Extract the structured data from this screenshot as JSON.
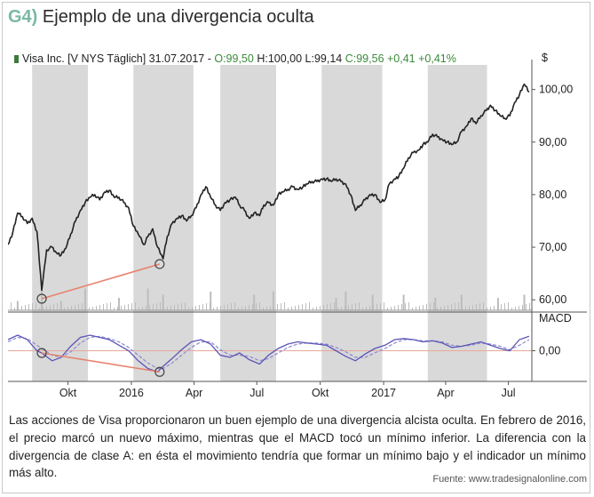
{
  "figure": {
    "tag": "G4)",
    "title": "Ejemplo de una divergencia oculta",
    "caption": "Las acciones de Visa proporcionaron un buen ejemplo de una divergencia alcista oculta. En febrero de 2016, el precio marcó un nuevo máximo, mientras que el MACD tocó un mínimo inferior. La diferencia con la divergencia de clase A: en ésta el movimiento tendría que formar un mínimo bajo y el indicador un mínimo más alto.",
    "source": "Fuente: www.tradesignalonline.com"
  },
  "colors": {
    "price_line": "#222222",
    "macd_line": "#5a55b8",
    "signal_line": "#8d8ad0",
    "divergence_line": "#e8826e",
    "shade": "#d9d9d9",
    "volume": "#bdbdbd",
    "tag": "#7bb8a4"
  },
  "chart_data": [
    {
      "type": "line",
      "panel": "price",
      "legend": {
        "symbol": "Visa Inc. [V NYS  Täglich] 31.07.2017 -",
        "open": "O:99,50",
        "high": "H:100,00",
        "low": "L:99,14",
        "close_change": "C:99,56 +0,41 +0,41%"
      },
      "currency": "$",
      "ylim": [
        58,
        104
      ],
      "y_ticks": [
        "100,00",
        "90,00",
        "80,00",
        "70,00",
        "60,00"
      ],
      "y_tick_values": [
        100,
        90,
        80,
        70,
        60
      ],
      "x_tick_labels": [
        "Okt",
        "2016",
        "Apr",
        "Jul",
        "Okt",
        "2017",
        "Apr",
        "Jul"
      ],
      "x_tick_dates": [
        "2015-10-01",
        "2016-01-01",
        "2016-04-01",
        "2016-07-01",
        "2016-10-01",
        "2017-01-01",
        "2017-04-01",
        "2017-07-01"
      ],
      "x_range": [
        "2015-07-06",
        "2017-08-04"
      ],
      "shaded_periods": [
        [
          "2015-08-10",
          "2015-10-30"
        ],
        [
          "2016-01-04",
          "2016-03-31"
        ],
        [
          "2016-05-09",
          "2016-07-29"
        ],
        [
          "2016-10-03",
          "2016-12-30"
        ],
        [
          "2017-03-06",
          "2017-05-31"
        ]
      ],
      "series": [
        {
          "x": [
            "2015-07-06",
            "2015-07-13",
            "2015-07-20",
            "2015-07-27",
            "2015-08-03",
            "2015-08-10",
            "2015-08-17",
            "2015-08-24",
            "2015-08-31",
            "2015-09-08",
            "2015-09-14",
            "2015-09-21",
            "2015-09-28",
            "2015-10-05",
            "2015-10-12",
            "2015-10-19",
            "2015-10-26",
            "2015-11-02",
            "2015-11-09",
            "2015-11-16",
            "2015-11-23",
            "2015-11-30",
            "2015-12-07",
            "2015-12-14",
            "2015-12-21",
            "2015-12-28",
            "2016-01-04",
            "2016-01-11",
            "2016-01-19",
            "2016-01-25",
            "2016-02-01",
            "2016-02-08",
            "2016-02-16",
            "2016-02-22",
            "2016-02-29",
            "2016-03-07",
            "2016-03-14",
            "2016-03-21",
            "2016-03-28",
            "2016-04-04",
            "2016-04-11",
            "2016-04-18",
            "2016-04-25",
            "2016-05-02",
            "2016-05-09",
            "2016-05-16",
            "2016-05-23",
            "2016-05-31",
            "2016-06-06",
            "2016-06-13",
            "2016-06-20",
            "2016-06-27",
            "2016-07-05",
            "2016-07-11",
            "2016-07-18",
            "2016-07-25",
            "2016-08-01",
            "2016-08-08",
            "2016-08-15",
            "2016-08-22",
            "2016-08-29",
            "2016-09-06",
            "2016-09-12",
            "2016-09-19",
            "2016-09-26",
            "2016-10-03",
            "2016-10-10",
            "2016-10-17",
            "2016-10-24",
            "2016-10-31",
            "2016-11-07",
            "2016-11-14",
            "2016-11-21",
            "2016-11-28",
            "2016-12-05",
            "2016-12-12",
            "2016-12-19",
            "2016-12-27",
            "2017-01-03",
            "2017-01-09",
            "2017-01-17",
            "2017-01-23",
            "2017-01-30",
            "2017-02-06",
            "2017-02-13",
            "2017-02-21",
            "2017-02-27",
            "2017-03-06",
            "2017-03-13",
            "2017-03-20",
            "2017-03-27",
            "2017-04-03",
            "2017-04-10",
            "2017-04-17",
            "2017-04-24",
            "2017-05-01",
            "2017-05-08",
            "2017-05-15",
            "2017-05-22",
            "2017-05-30",
            "2017-06-05",
            "2017-06-12",
            "2017-06-19",
            "2017-06-26",
            "2017-07-03",
            "2017-07-10",
            "2017-07-17",
            "2017-07-24",
            "2017-07-31"
          ],
          "values": [
            70.5,
            72.8,
            76.5,
            75.8,
            74.5,
            75.5,
            73.0,
            61.8,
            69.5,
            70.0,
            69.0,
            68.5,
            69.8,
            72.5,
            75.0,
            77.0,
            78.5,
            79.5,
            80.0,
            79.0,
            80.5,
            80.8,
            79.5,
            79.5,
            78.5,
            77.5,
            74.0,
            72.5,
            70.5,
            72.0,
            73.5,
            70.0,
            67.8,
            72.0,
            74.5,
            75.5,
            76.0,
            75.0,
            76.0,
            77.5,
            80.0,
            81.5,
            79.5,
            78.0,
            77.0,
            78.5,
            79.0,
            79.5,
            78.0,
            77.0,
            75.5,
            76.5,
            76.0,
            78.0,
            78.5,
            78.0,
            80.0,
            80.5,
            81.0,
            81.5,
            81.0,
            81.5,
            82.0,
            82.5,
            82.5,
            83.0,
            83.0,
            82.5,
            83.0,
            82.5,
            82.0,
            80.0,
            77.0,
            78.0,
            79.0,
            80.0,
            80.0,
            78.5,
            79.0,
            82.0,
            83.0,
            83.5,
            85.0,
            87.0,
            88.0,
            88.5,
            89.5,
            90.0,
            91.5,
            91.0,
            90.5,
            90.0,
            89.5,
            90.0,
            92.0,
            93.0,
            94.5,
            93.5,
            95.0,
            96.0,
            97.0,
            96.0,
            95.0,
            94.5,
            95.0,
            97.5,
            99.0,
            101.0,
            99.5
          ]
        }
      ],
      "volume": {
        "x": [
          "2015-07-20",
          "2015-08-24",
          "2015-09-21",
          "2015-10-26",
          "2015-12-14",
          "2016-01-25",
          "2016-02-16",
          "2016-04-25",
          "2016-06-27",
          "2016-07-25",
          "2016-10-24",
          "2016-11-07",
          "2016-12-16",
          "2017-01-30",
          "2017-03-17",
          "2017-04-24",
          "2017-06-16",
          "2017-07-24"
        ],
        "values": [
          3,
          9,
          3,
          7,
          4,
          7,
          5,
          6,
          5,
          6,
          4,
          6,
          5,
          5,
          4,
          5,
          4,
          5
        ]
      },
      "divergence": {
        "x": [
          "2015-08-24",
          "2016-02-11"
        ],
        "values": [
          60.2,
          66.8
        ]
      }
    },
    {
      "type": "line",
      "panel": "indicator",
      "title": "MACD",
      "ylim": [
        -2.6,
        2.2
      ],
      "y_ticks": [
        "0,00"
      ],
      "y_tick_values": [
        0
      ],
      "series": [
        {
          "role": "macd",
          "x": [
            "2015-07-06",
            "2015-07-20",
            "2015-08-03",
            "2015-08-17",
            "2015-08-24",
            "2015-09-08",
            "2015-09-21",
            "2015-10-05",
            "2015-10-19",
            "2015-11-02",
            "2015-11-16",
            "2015-11-30",
            "2015-12-14",
            "2015-12-28",
            "2016-01-11",
            "2016-01-25",
            "2016-02-08",
            "2016-02-16",
            "2016-02-29",
            "2016-03-14",
            "2016-03-28",
            "2016-04-11",
            "2016-04-25",
            "2016-05-09",
            "2016-05-23",
            "2016-06-06",
            "2016-06-20",
            "2016-07-05",
            "2016-07-18",
            "2016-08-01",
            "2016-08-15",
            "2016-08-29",
            "2016-09-12",
            "2016-09-26",
            "2016-10-10",
            "2016-10-24",
            "2016-11-07",
            "2016-11-21",
            "2016-12-05",
            "2016-12-19",
            "2017-01-03",
            "2017-01-17",
            "2017-01-30",
            "2017-02-13",
            "2017-02-27",
            "2017-03-13",
            "2017-03-27",
            "2017-04-10",
            "2017-04-24",
            "2017-05-08",
            "2017-05-22",
            "2017-06-05",
            "2017-06-19",
            "2017-07-03",
            "2017-07-17",
            "2017-07-31"
          ],
          "values": [
            1.0,
            1.4,
            1.0,
            0.0,
            -0.2,
            -0.9,
            -0.6,
            0.4,
            1.2,
            1.4,
            1.2,
            1.0,
            0.5,
            0.0,
            -0.9,
            -1.6,
            -1.9,
            -1.4,
            -0.7,
            0.1,
            0.8,
            1.0,
            0.6,
            -0.4,
            -0.6,
            -0.2,
            -0.8,
            -1.2,
            -0.4,
            0.2,
            0.6,
            0.8,
            0.7,
            0.6,
            0.5,
            0.0,
            -0.5,
            -0.9,
            -0.3,
            0.2,
            0.5,
            1.0,
            1.1,
            1.0,
            0.8,
            0.9,
            0.7,
            0.3,
            0.4,
            0.6,
            0.8,
            0.5,
            0.2,
            0.0,
            1.0,
            1.3
          ]
        },
        {
          "role": "signal",
          "x": [
            "2015-07-06",
            "2015-07-20",
            "2015-08-03",
            "2015-08-17",
            "2015-08-24",
            "2015-09-08",
            "2015-09-21",
            "2015-10-05",
            "2015-10-19",
            "2015-11-02",
            "2015-11-16",
            "2015-11-30",
            "2015-12-14",
            "2015-12-28",
            "2016-01-11",
            "2016-01-25",
            "2016-02-08",
            "2016-02-16",
            "2016-02-29",
            "2016-03-14",
            "2016-03-28",
            "2016-04-11",
            "2016-04-25",
            "2016-05-09",
            "2016-05-23",
            "2016-06-06",
            "2016-06-20",
            "2016-07-05",
            "2016-07-18",
            "2016-08-01",
            "2016-08-15",
            "2016-08-29",
            "2016-09-12",
            "2016-09-26",
            "2016-10-10",
            "2016-10-24",
            "2016-11-07",
            "2016-11-21",
            "2016-12-05",
            "2016-12-19",
            "2017-01-03",
            "2017-01-17",
            "2017-01-30",
            "2017-02-13",
            "2017-02-27",
            "2017-03-13",
            "2017-03-27",
            "2017-04-10",
            "2017-04-24",
            "2017-05-08",
            "2017-05-22",
            "2017-06-05",
            "2017-06-19",
            "2017-07-03",
            "2017-07-17",
            "2017-07-31"
          ],
          "values": [
            0.8,
            1.2,
            1.1,
            0.5,
            0.2,
            -0.4,
            -0.6,
            -0.1,
            0.7,
            1.2,
            1.3,
            1.1,
            0.8,
            0.3,
            -0.4,
            -1.1,
            -1.6,
            -1.6,
            -1.1,
            -0.4,
            0.3,
            0.8,
            0.8,
            0.1,
            -0.4,
            -0.4,
            -0.5,
            -0.9,
            -0.7,
            -0.2,
            0.3,
            0.6,
            0.7,
            0.7,
            0.6,
            0.3,
            -0.1,
            -0.6,
            -0.6,
            -0.2,
            0.2,
            0.7,
            1.0,
            1.0,
            0.9,
            0.9,
            0.8,
            0.5,
            0.4,
            0.5,
            0.7,
            0.6,
            0.4,
            0.1,
            0.5,
            1.0
          ]
        }
      ],
      "divergence": {
        "x": [
          "2015-08-24",
          "2016-02-11"
        ],
        "values": [
          -0.2,
          -1.9
        ]
      }
    }
  ]
}
